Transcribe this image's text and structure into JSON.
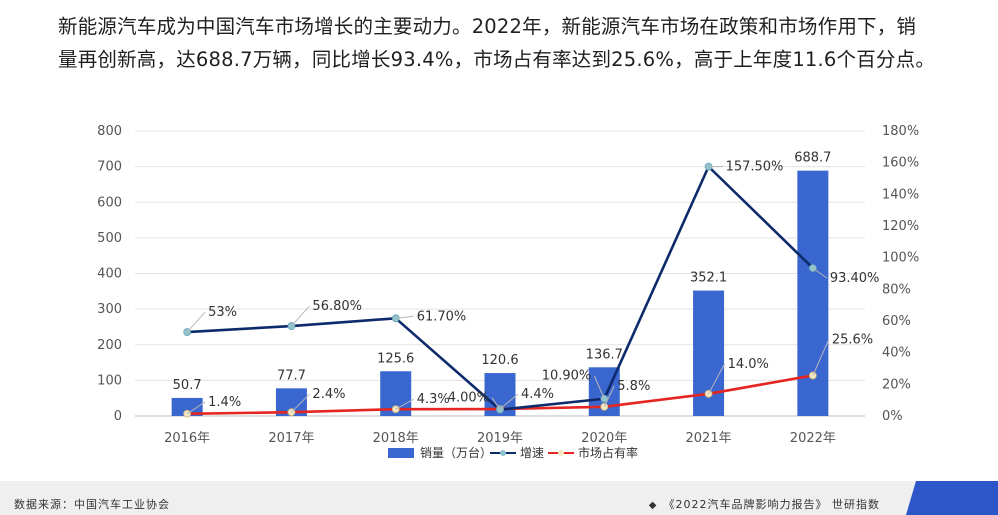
{
  "headline": {
    "line1": "新能源汽车成为中国汽车市场增长的主要动力。2022年，新能源汽车市场在政策和市场作用下，销",
    "line2": "量再创新高，达688.7万辆，同比增长93.4%，市场占有率达到25.6%，高于上年度11.6个百分点。"
  },
  "chart_data": {
    "type": "bar",
    "categories": [
      "2016年",
      "2017年",
      "2018年",
      "2019年",
      "2020年",
      "2021年",
      "2022年"
    ],
    "series": [
      {
        "name": "销量（万台）",
        "kind": "bar",
        "axis": "left",
        "color": "#3a66d0",
        "values": [
          50.7,
          77.7,
          125.6,
          120.6,
          136.7,
          352.1,
          688.7
        ],
        "labels": [
          "50.7",
          "77.7",
          "125.6",
          "120.6",
          "136.7",
          "352.1",
          "688.7"
        ]
      },
      {
        "name": "增速",
        "kind": "line",
        "axis": "right",
        "color": "#0d2a6b",
        "marker_color": "#8ec3cf",
        "values": [
          53,
          56.8,
          61.7,
          4.0,
          10.9,
          157.5,
          93.4
        ],
        "labels": [
          "53%",
          "56.80%",
          "61.70%",
          "4.00%",
          "10.90%",
          "157.50%",
          "93.40%"
        ]
      },
      {
        "name": "市场占有率",
        "kind": "line",
        "axis": "right",
        "color": "#e52521",
        "marker_color": "#f5e6c4",
        "values": [
          1.4,
          2.4,
          4.3,
          4.4,
          5.8,
          14.0,
          25.6
        ],
        "labels": [
          "1.4%",
          "2.4%",
          "4.3%",
          "4.4%",
          "5.8%",
          "14.0%",
          "25.6%"
        ]
      }
    ],
    "y_left": {
      "range": [
        0,
        800
      ],
      "ticks": [
        "0",
        "100",
        "200",
        "300",
        "400",
        "500",
        "600",
        "700",
        "800"
      ]
    },
    "y_right": {
      "range": [
        0,
        180
      ],
      "ticks": [
        "0%",
        "20%",
        "40%",
        "60%",
        "80%",
        "100%",
        "120%",
        "140%",
        "160%",
        "180%"
      ]
    },
    "grid": true,
    "legend_position": "bottom"
  },
  "footer": {
    "source": "数据来源：中国汽车工业协会",
    "report": "《2022汽车品牌影响力报告》 世研指数"
  }
}
